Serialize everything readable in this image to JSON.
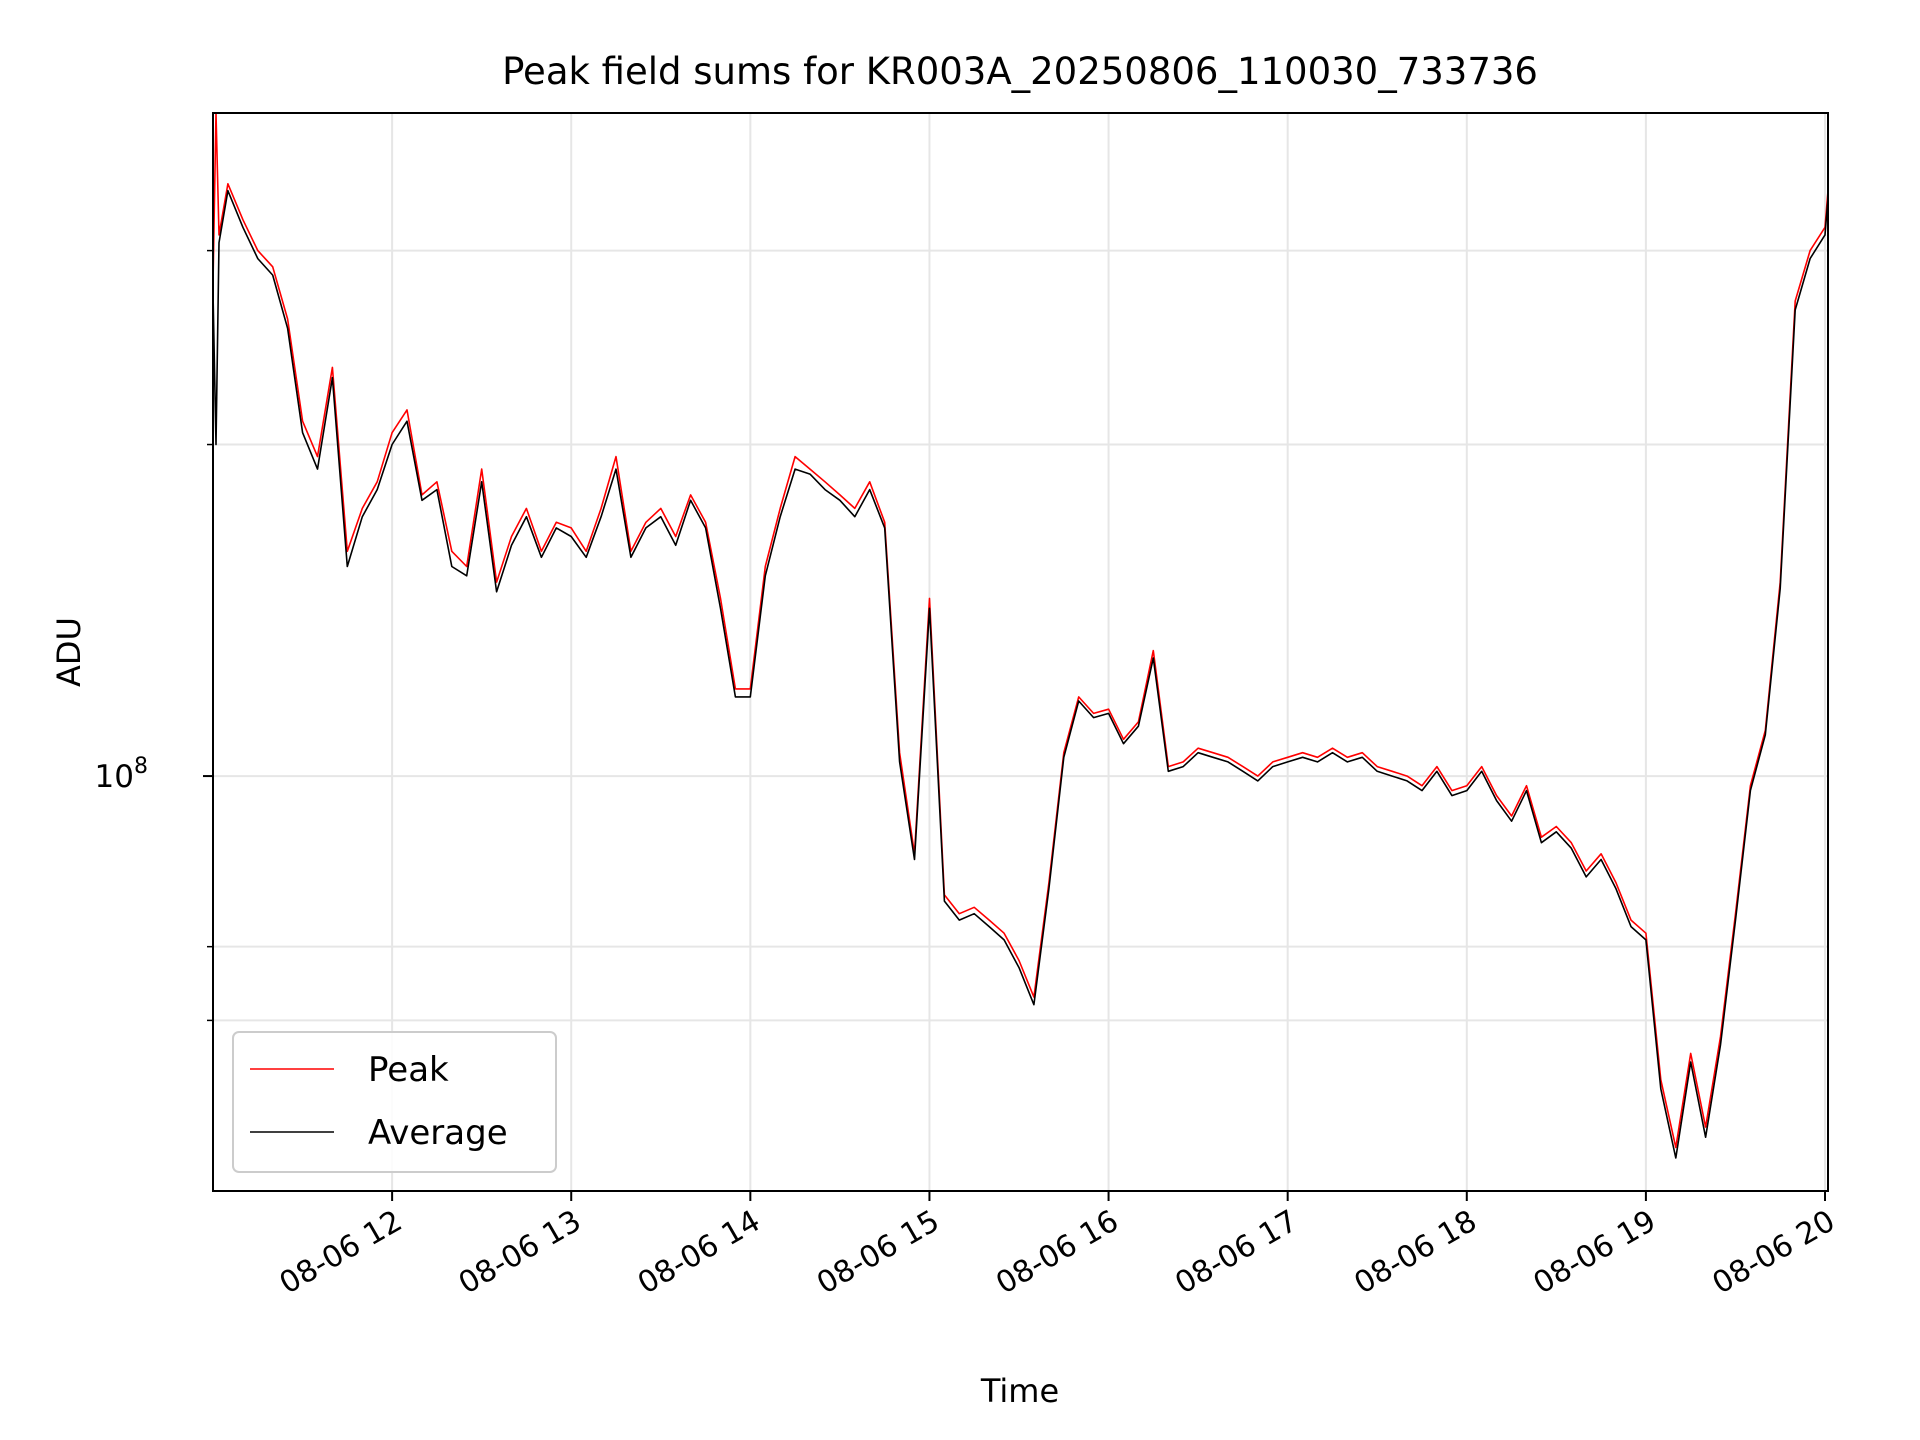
{
  "chart_data": {
    "type": "line",
    "title": "Peak field sums for KR003A_20250806_110030_733736",
    "xlabel": "Time",
    "ylabel": "ADU",
    "y_scale": "log",
    "grid": true,
    "legend_position": "lower-left",
    "x_range": [
      "08-06 11:00",
      "08-06 20:01"
    ],
    "y_range": [
      42000000.0,
      400000000.0
    ],
    "x_ticks": [
      "08-06 12",
      "08-06 13",
      "08-06 14",
      "08-06 15",
      "08-06 16",
      "08-06 17",
      "08-06 18",
      "08-06 19",
      "08-06 20"
    ],
    "y_ticks": [
      {
        "base": "10",
        "exp": "8",
        "value": 100000000.0
      }
    ],
    "y_minor_ticks": [
      60000000.0,
      70000000.0,
      200000000.0,
      300000000.0
    ],
    "series": [
      {
        "name": "Peak",
        "color": "#ff0000",
        "points": [
          [
            "08-06 11:00",
            280000000.0
          ],
          [
            "08-06 11:01",
            400000000.0
          ],
          [
            "08-06 11:02",
            310000000.0
          ],
          [
            "08-06 11:05",
            345000000.0
          ],
          [
            "08-06 11:10",
            320000000.0
          ],
          [
            "08-06 11:15",
            300000000.0
          ],
          [
            "08-06 11:20",
            290000000.0
          ],
          [
            "08-06 11:25",
            260000000.0
          ],
          [
            "08-06 11:30",
            210000000.0
          ],
          [
            "08-06 11:35",
            195000000.0
          ],
          [
            "08-06 11:40",
            235000000.0
          ],
          [
            "08-06 11:45",
            160000000.0
          ],
          [
            "08-06 11:50",
            175000000.0
          ],
          [
            "08-06 11:55",
            185000000.0
          ],
          [
            "08-06 12:00",
            205000000.0
          ],
          [
            "08-06 12:05",
            215000000.0
          ],
          [
            "08-06 12:10",
            180000000.0
          ],
          [
            "08-06 12:15",
            185000000.0
          ],
          [
            "08-06 12:20",
            160000000.0
          ],
          [
            "08-06 12:25",
            155000000.0
          ],
          [
            "08-06 12:30",
            190000000.0
          ],
          [
            "08-06 12:35",
            150000000.0
          ],
          [
            "08-06 12:40",
            165000000.0
          ],
          [
            "08-06 12:45",
            175000000.0
          ],
          [
            "08-06 12:50",
            160000000.0
          ],
          [
            "08-06 12:55",
            170000000.0
          ],
          [
            "08-06 13:00",
            168000000.0
          ],
          [
            "08-06 13:05",
            160000000.0
          ],
          [
            "08-06 13:10",
            175000000.0
          ],
          [
            "08-06 13:15",
            195000000.0
          ],
          [
            "08-06 13:20",
            160000000.0
          ],
          [
            "08-06 13:25",
            170000000.0
          ],
          [
            "08-06 13:30",
            175000000.0
          ],
          [
            "08-06 13:35",
            165000000.0
          ],
          [
            "08-06 13:40",
            180000000.0
          ],
          [
            "08-06 13:45",
            170000000.0
          ],
          [
            "08-06 13:50",
            145000000.0
          ],
          [
            "08-06 13:55",
            120000000.0
          ],
          [
            "08-06 14:00",
            120000000.0
          ],
          [
            "08-06 14:05",
            155000000.0
          ],
          [
            "08-06 14:10",
            175000000.0
          ],
          [
            "08-06 14:15",
            195000000.0
          ],
          [
            "08-06 14:20",
            190000000.0
          ],
          [
            "08-06 14:25",
            185000000.0
          ],
          [
            "08-06 14:30",
            180000000.0
          ],
          [
            "08-06 14:35",
            175000000.0
          ],
          [
            "08-06 14:40",
            185000000.0
          ],
          [
            "08-06 14:45",
            170000000.0
          ],
          [
            "08-06 14:50",
            105000000.0
          ],
          [
            "08-06 14:55",
            85000000.0
          ],
          [
            "08-06 15:00",
            145000000.0
          ],
          [
            "08-06 15:05",
            78000000.0
          ],
          [
            "08-06 15:10",
            75000000.0
          ],
          [
            "08-06 15:15",
            76000000.0
          ],
          [
            "08-06 15:20",
            74000000.0
          ],
          [
            "08-06 15:25",
            72000000.0
          ],
          [
            "08-06 15:30",
            68000000.0
          ],
          [
            "08-06 15:35",
            63000000.0
          ],
          [
            "08-06 15:40",
            80000000.0
          ],
          [
            "08-06 15:45",
            105000000.0
          ],
          [
            "08-06 15:50",
            118000000.0
          ],
          [
            "08-06 15:55",
            114000000.0
          ],
          [
            "08-06 16:00",
            115000000.0
          ],
          [
            "08-06 16:05",
            108000000.0
          ],
          [
            "08-06 16:10",
            112000000.0
          ],
          [
            "08-06 16:15",
            130000000.0
          ],
          [
            "08-06 16:20",
            102000000.0
          ],
          [
            "08-06 16:25",
            103000000.0
          ],
          [
            "08-06 16:30",
            106000000.0
          ],
          [
            "08-06 16:35",
            105000000.0
          ],
          [
            "08-06 16:40",
            104000000.0
          ],
          [
            "08-06 16:45",
            102000000.0
          ],
          [
            "08-06 16:50",
            100000000.0
          ],
          [
            "08-06 16:55",
            103000000.0
          ],
          [
            "08-06 17:00",
            104000000.0
          ],
          [
            "08-06 17:05",
            105000000.0
          ],
          [
            "08-06 17:10",
            104000000.0
          ],
          [
            "08-06 17:15",
            106000000.0
          ],
          [
            "08-06 17:20",
            104000000.0
          ],
          [
            "08-06 17:25",
            105000000.0
          ],
          [
            "08-06 17:30",
            102000000.0
          ],
          [
            "08-06 17:35",
            101000000.0
          ],
          [
            "08-06 17:40",
            100000000.0
          ],
          [
            "08-06 17:45",
            98000000.0
          ],
          [
            "08-06 17:50",
            102000000.0
          ],
          [
            "08-06 17:55",
            97000000.0
          ],
          [
            "08-06 18:00",
            98000000.0
          ],
          [
            "08-06 18:05",
            102000000.0
          ],
          [
            "08-06 18:10",
            96000000.0
          ],
          [
            "08-06 18:15",
            92000000.0
          ],
          [
            "08-06 18:20",
            98000000.0
          ],
          [
            "08-06 18:25",
            88000000.0
          ],
          [
            "08-06 18:30",
            90000000.0
          ],
          [
            "08-06 18:35",
            87000000.0
          ],
          [
            "08-06 18:40",
            82000000.0
          ],
          [
            "08-06 18:45",
            85000000.0
          ],
          [
            "08-06 18:50",
            80000000.0
          ],
          [
            "08-06 18:55",
            74000000.0
          ],
          [
            "08-06 19:00",
            72000000.0
          ],
          [
            "08-06 19:05",
            53000000.0
          ],
          [
            "08-06 19:10",
            46000000.0
          ],
          [
            "08-06 19:15",
            56000000.0
          ],
          [
            "08-06 19:20",
            48000000.0
          ],
          [
            "08-06 19:25",
            58000000.0
          ],
          [
            "08-06 19:30",
            75000000.0
          ],
          [
            "08-06 19:35",
            98000000.0
          ],
          [
            "08-06 19:40",
            110000000.0
          ],
          [
            "08-06 19:45",
            150000000.0
          ],
          [
            "08-06 19:50",
            270000000.0
          ],
          [
            "08-06 19:55",
            300000000.0
          ],
          [
            "08-06 20:00",
            315000000.0
          ],
          [
            "08-06 20:01",
            340000000.0
          ]
        ]
      },
      {
        "name": "Average",
        "color": "#000000",
        "points": [
          [
            "08-06 11:00",
            275000000.0
          ],
          [
            "08-06 11:01",
            200000000.0
          ],
          [
            "08-06 11:02",
            305000000.0
          ],
          [
            "08-06 11:05",
            340000000.0
          ],
          [
            "08-06 11:10",
            315000000.0
          ],
          [
            "08-06 11:15",
            295000000.0
          ],
          [
            "08-06 11:20",
            285000000.0
          ],
          [
            "08-06 11:25",
            255000000.0
          ],
          [
            "08-06 11:30",
            205000000.0
          ],
          [
            "08-06 11:35",
            190000000.0
          ],
          [
            "08-06 11:40",
            230000000.0
          ],
          [
            "08-06 11:45",
            155000000.0
          ],
          [
            "08-06 11:50",
            172000000.0
          ],
          [
            "08-06 11:55",
            182000000.0
          ],
          [
            "08-06 12:00",
            200000000.0
          ],
          [
            "08-06 12:05",
            210000000.0
          ],
          [
            "08-06 12:10",
            178000000.0
          ],
          [
            "08-06 12:15",
            182000000.0
          ],
          [
            "08-06 12:20",
            155000000.0
          ],
          [
            "08-06 12:25",
            152000000.0
          ],
          [
            "08-06 12:30",
            185000000.0
          ],
          [
            "08-06 12:35",
            147000000.0
          ],
          [
            "08-06 12:40",
            162000000.0
          ],
          [
            "08-06 12:45",
            172000000.0
          ],
          [
            "08-06 12:50",
            158000000.0
          ],
          [
            "08-06 12:55",
            168000000.0
          ],
          [
            "08-06 13:00",
            165000000.0
          ],
          [
            "08-06 13:05",
            158000000.0
          ],
          [
            "08-06 13:10",
            172000000.0
          ],
          [
            "08-06 13:15",
            190000000.0
          ],
          [
            "08-06 13:20",
            158000000.0
          ],
          [
            "08-06 13:25",
            168000000.0
          ],
          [
            "08-06 13:30",
            172000000.0
          ],
          [
            "08-06 13:35",
            162000000.0
          ],
          [
            "08-06 13:40",
            178000000.0
          ],
          [
            "08-06 13:45",
            168000000.0
          ],
          [
            "08-06 13:50",
            142000000.0
          ],
          [
            "08-06 13:55",
            118000000.0
          ],
          [
            "08-06 14:00",
            118000000.0
          ],
          [
            "08-06 14:05",
            152000000.0
          ],
          [
            "08-06 14:10",
            172000000.0
          ],
          [
            "08-06 14:15",
            190000000.0
          ],
          [
            "08-06 14:20",
            188000000.0
          ],
          [
            "08-06 14:25",
            182000000.0
          ],
          [
            "08-06 14:30",
            178000000.0
          ],
          [
            "08-06 14:35",
            172000000.0
          ],
          [
            "08-06 14:40",
            182000000.0
          ],
          [
            "08-06 14:45",
            168000000.0
          ],
          [
            "08-06 14:50",
            103000000.0
          ],
          [
            "08-06 14:55",
            84000000.0
          ],
          [
            "08-06 15:00",
            142000000.0
          ],
          [
            "08-06 15:05",
            77000000.0
          ],
          [
            "08-06 15:10",
            74000000.0
          ],
          [
            "08-06 15:15",
            75000000.0
          ],
          [
            "08-06 15:20",
            73000000.0
          ],
          [
            "08-06 15:25",
            71000000.0
          ],
          [
            "08-06 15:30",
            67000000.0
          ],
          [
            "08-06 15:35",
            62000000.0
          ],
          [
            "08-06 15:40",
            79000000.0
          ],
          [
            "08-06 15:45",
            104000000.0
          ],
          [
            "08-06 15:50",
            117000000.0
          ],
          [
            "08-06 15:55",
            113000000.0
          ],
          [
            "08-06 16:00",
            114000000.0
          ],
          [
            "08-06 16:05",
            107000000.0
          ],
          [
            "08-06 16:10",
            111000000.0
          ],
          [
            "08-06 16:15",
            128000000.0
          ],
          [
            "08-06 16:20",
            101000000.0
          ],
          [
            "08-06 16:25",
            102000000.0
          ],
          [
            "08-06 16:30",
            105000000.0
          ],
          [
            "08-06 16:35",
            104000000.0
          ],
          [
            "08-06 16:40",
            103000000.0
          ],
          [
            "08-06 16:45",
            101000000.0
          ],
          [
            "08-06 16:50",
            99000000.0
          ],
          [
            "08-06 16:55",
            102000000.0
          ],
          [
            "08-06 17:00",
            103000000.0
          ],
          [
            "08-06 17:05",
            104000000.0
          ],
          [
            "08-06 17:10",
            103000000.0
          ],
          [
            "08-06 17:15",
            105000000.0
          ],
          [
            "08-06 17:20",
            103000000.0
          ],
          [
            "08-06 17:25",
            104000000.0
          ],
          [
            "08-06 17:30",
            101000000.0
          ],
          [
            "08-06 17:35",
            100000000.0
          ],
          [
            "08-06 17:40",
            99000000.0
          ],
          [
            "08-06 17:45",
            97000000.0
          ],
          [
            "08-06 17:50",
            101000000.0
          ],
          [
            "08-06 17:55",
            96000000.0
          ],
          [
            "08-06 18:00",
            97000000.0
          ],
          [
            "08-06 18:05",
            101000000.0
          ],
          [
            "08-06 18:10",
            95000000.0
          ],
          [
            "08-06 18:15",
            91000000.0
          ],
          [
            "08-06 18:20",
            97000000.0
          ],
          [
            "08-06 18:25",
            87000000.0
          ],
          [
            "08-06 18:30",
            89000000.0
          ],
          [
            "08-06 18:35",
            86000000.0
          ],
          [
            "08-06 18:40",
            81000000.0
          ],
          [
            "08-06 18:45",
            84000000.0
          ],
          [
            "08-06 18:50",
            79000000.0
          ],
          [
            "08-06 18:55",
            73000000.0
          ],
          [
            "08-06 19:00",
            71000000.0
          ],
          [
            "08-06 19:05",
            52000000.0
          ],
          [
            "08-06 19:10",
            45000000.0
          ],
          [
            "08-06 19:15",
            55000000.0
          ],
          [
            "08-06 19:20",
            47000000.0
          ],
          [
            "08-06 19:25",
            57000000.0
          ],
          [
            "08-06 19:30",
            74000000.0
          ],
          [
            "08-06 19:35",
            97000000.0
          ],
          [
            "08-06 19:40",
            109000000.0
          ],
          [
            "08-06 19:45",
            148000000.0
          ],
          [
            "08-06 19:50",
            265000000.0
          ],
          [
            "08-06 19:55",
            295000000.0
          ],
          [
            "08-06 20:00",
            310000000.0
          ],
          [
            "08-06 20:01",
            335000000.0
          ]
        ]
      }
    ]
  }
}
